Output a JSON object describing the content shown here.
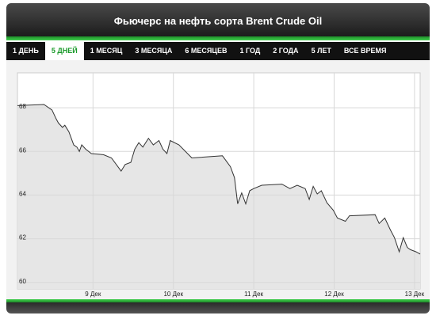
{
  "header": {
    "title": "Фьючерс на нефть сорта Brent Crude Oil"
  },
  "tabs": [
    "1 ДЕНЬ",
    "5 ДНЕЙ",
    "1 МЕСЯЦ",
    "3 МЕСЯЦА",
    "6 МЕСЯЦЕВ",
    "1 ГОД",
    "2 ГОДА",
    "5 ЛЕТ",
    "ВСЕ ВРЕМЯ"
  ],
  "active_tab": 1,
  "chart_data": {
    "type": "line",
    "color": "#333333",
    "fill": "#e6e6e6",
    "grid": true,
    "x": [
      8.06,
      8.39,
      8.49,
      8.54,
      8.57,
      8.62,
      8.65,
      8.7,
      8.76,
      8.8,
      8.83,
      8.86,
      8.91,
      8.98,
      9.13,
      9.23,
      9.35,
      9.4,
      9.47,
      9.52,
      9.57,
      9.62,
      9.69,
      9.75,
      9.82,
      9.87,
      9.92,
      9.96,
      10.07,
      10.23,
      10.61,
      10.71,
      10.76,
      10.8,
      10.85,
      10.9,
      10.95,
      11.0,
      11.1,
      11.35,
      11.45,
      11.54,
      11.64,
      11.69,
      11.74,
      11.79,
      11.84,
      11.91,
      11.99,
      12.04,
      12.14,
      12.19,
      12.51,
      12.56,
      12.63,
      12.7,
      12.75,
      12.81,
      12.86,
      12.91,
      12.95,
      13.02,
      13.07
    ],
    "values": [
      68.1,
      68.15,
      67.9,
      67.5,
      67.3,
      67.1,
      67.2,
      66.9,
      66.3,
      66.2,
      66.0,
      66.3,
      66.1,
      65.9,
      65.85,
      65.7,
      65.1,
      65.4,
      65.5,
      66.1,
      66.4,
      66.2,
      66.6,
      66.3,
      66.5,
      66.1,
      65.9,
      66.5,
      66.3,
      65.7,
      65.8,
      65.3,
      64.8,
      63.6,
      64.1,
      63.6,
      64.2,
      64.3,
      64.45,
      64.5,
      64.3,
      64.45,
      64.3,
      63.8,
      64.4,
      64.05,
      64.2,
      63.65,
      63.3,
      62.95,
      62.8,
      63.05,
      63.1,
      62.7,
      62.95,
      62.4,
      62.05,
      61.4,
      62.05,
      61.6,
      61.5,
      61.4,
      61.3
    ],
    "xlim": [
      8.06,
      13.07
    ],
    "xticks": [
      {
        "value": 9,
        "label": "9 Дек"
      },
      {
        "value": 10,
        "label": "10 Дек"
      },
      {
        "value": 11,
        "label": "11 Дек"
      },
      {
        "value": 12,
        "label": "12 Дек"
      },
      {
        "value": 13,
        "label": "13 Дек"
      }
    ],
    "ylim": [
      59.7,
      69.6
    ],
    "yticks": [
      60,
      62,
      64,
      66,
      68
    ]
  }
}
